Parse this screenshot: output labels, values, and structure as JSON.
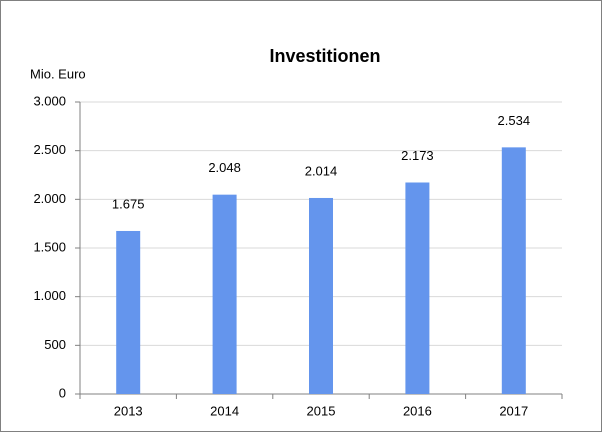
{
  "chart_data": {
    "type": "bar",
    "title": "Investitionen",
    "y_label": "Mio. Euro",
    "categories": [
      "2013",
      "2014",
      "2015",
      "2016",
      "2017"
    ],
    "values": [
      1675,
      2048,
      2014,
      2173,
      2534
    ],
    "value_labels": [
      "1.675",
      "2.048",
      "2.014",
      "2.173",
      "2.534"
    ],
    "color": "#6495ed",
    "ylim": [
      0,
      3000
    ],
    "yticks": [
      0,
      {
        "value": 500,
        "label": "500"
      },
      {
        "value": 1000,
        "label": "1.000"
      },
      {
        "value": 1500,
        "label": "1.500"
      },
      {
        "value": 2000,
        "label": "2.000"
      },
      {
        "value": 2500,
        "label": "2.500"
      },
      {
        "value": 3000,
        "label": "3.000"
      }
    ],
    "grid": true
  }
}
